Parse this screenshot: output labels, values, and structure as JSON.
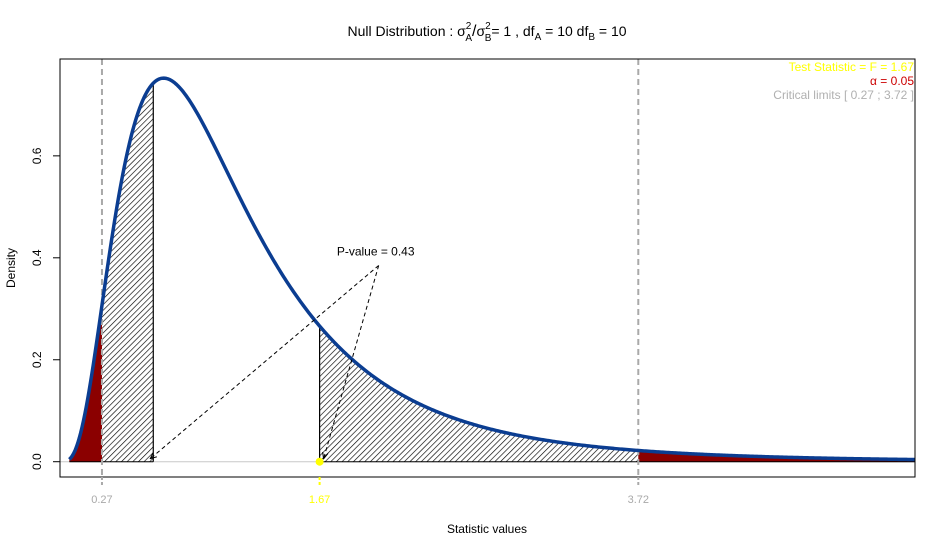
{
  "chart_data": {
    "type": "area",
    "title_main": "Null Distribution : σ",
    "title_sup_a": "2",
    "title_sub_a": "A",
    "title_slash": "/",
    "title_sigma_b": "σ",
    "title_sup_b": "2",
    "title_sub_b": "B",
    "title_eq": "= 1 ,   df",
    "title_dfa_sub": "A",
    "title_dfa_val": " =  10   df",
    "title_dfb_sub": "B",
    "title_dfb_val": " =  10",
    "xlabel": "Statistic values",
    "ylabel": "Density",
    "xlim": [
      0.0,
      5.5
    ],
    "ylim": [
      -0.03,
      0.79
    ],
    "df_a": 10,
    "df_b": 10,
    "x_ticks": [
      {
        "value": 0.27,
        "label": "0.27",
        "color": "#a9a9a9"
      },
      {
        "value": 1.67,
        "label": "1.67",
        "color": "#ffff00"
      },
      {
        "value": 3.72,
        "label": "3.72",
        "color": "#a9a9a9"
      }
    ],
    "y_ticks": [
      {
        "value": 0.0,
        "label": "0.0"
      },
      {
        "value": 0.2,
        "label": "0.2"
      },
      {
        "value": 0.4,
        "label": "0.4"
      },
      {
        "value": 0.6,
        "label": "0.6"
      }
    ],
    "test_statistic": 1.67,
    "mirror_statistic": 0.6,
    "critical_limits": [
      0.27,
      3.72
    ],
    "alpha": 0.05,
    "p_value_label": "P-value = 0.43",
    "p_value_anchor": {
      "x": 2.05,
      "y": 0.385
    },
    "legend": [
      {
        "text": "Test Statistic = F =  1.67",
        "color": "#ffff00"
      },
      {
        "text": "α =  0.05",
        "color": "#cc0000"
      },
      {
        "text": "Critical limits  [ 0.27 ; 3.72 ]",
        "color": "#b0b0b0"
      }
    ],
    "colors": {
      "curve": "#0b3d91",
      "rejection_fill": "#8b0000",
      "hatch": "#000000",
      "critical_line": "#a9a9a9",
      "test_point": "#ffff00",
      "zero_line": "#c8c8c8"
    }
  }
}
